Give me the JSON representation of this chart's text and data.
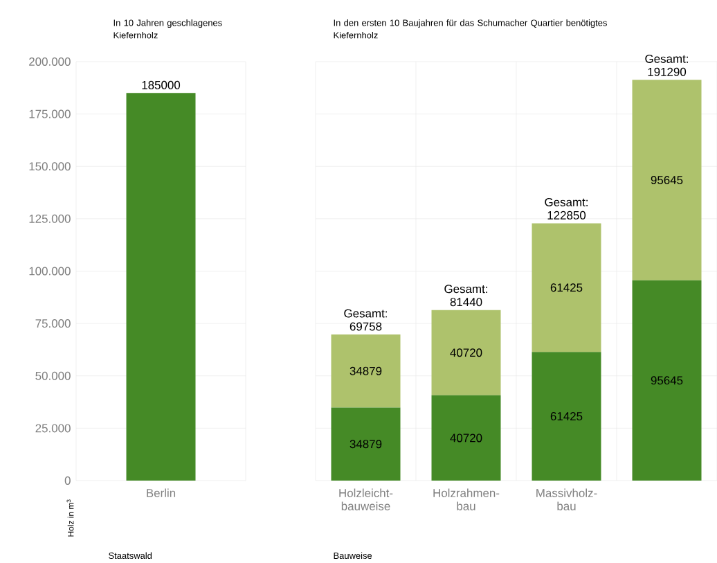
{
  "chart_data": [
    {
      "type": "bar",
      "title": "In 10 Jahren geschlagenes Kiefernholz",
      "xlabel": "Staatswald",
      "ylabel": "Holz in m$^{3}$",
      "categories": [
        "Berlin"
      ],
      "series": [
        {
          "color": "#458a26",
          "values": [
            185000
          ]
        }
      ],
      "ylim": [
        0,
        200000
      ],
      "yticks": [
        0,
        {
          "value": 25000,
          "label": "25.000"
        },
        {
          "value": 50000,
          "label": "50.000"
        },
        {
          "value": 75000,
          "label": "75.000"
        },
        {
          "value": 100000,
          "label": "100.000"
        },
        {
          "value": 125000,
          "label": "125.000"
        },
        {
          "value": 150000,
          "label": "150.000"
        },
        {
          "value": 175000,
          "label": "175.000"
        },
        {
          "value": 200000,
          "label": "200.000"
        }
      ],
      "grid": true,
      "data_labels": true
    },
    {
      "type": "bar",
      "title": "In den ersten 10 Baujahren für das Schumacher Quartier benötigtes Kiefernholz",
      "xlabel": "Bauweise",
      "categories": [
        "Holzleicht-bauweise",
        "Holzrahmen-bau",
        "Massivholz-bau",
        null
      ],
      "stacked": true,
      "series": [
        {
          "color": "#458a26",
          "values": [
            34879,
            40720,
            61425,
            95645
          ]
        },
        {
          "color": "#aec26c",
          "values": [
            34879,
            40720,
            61425,
            95645
          ]
        }
      ],
      "totals": [
        "Gesamt: 69758",
        "Gesamt: 81440",
        "Gesamt: 122850",
        "Gesamt: 191290"
      ],
      "ylim": [
        0,
        200000
      ],
      "yticks": [
        0,
        25000,
        50000,
        75000,
        100000,
        125000,
        150000,
        175000,
        200000
      ],
      "tick_labels": "x",
      "grid": true,
      "data_labels": true
    }
  ]
}
